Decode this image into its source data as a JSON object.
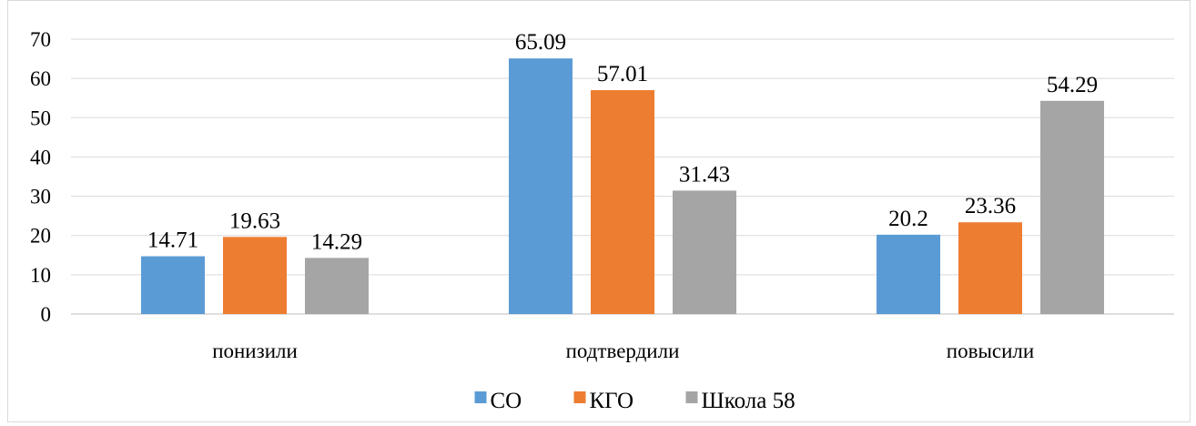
{
  "chart_data": {
    "type": "bar",
    "title": "",
    "xlabel": "",
    "ylabel": "",
    "categories": [
      "понизили",
      "подтвердили",
      "повысили"
    ],
    "series": [
      {
        "name": "СО",
        "color": "#5b9bd5",
        "values": [
          14.71,
          65.09,
          20.2
        ]
      },
      {
        "name": "КГО",
        "color": "#ed7d31",
        "values": [
          19.63,
          57.01,
          23.36
        ]
      },
      {
        "name": "Школа 58",
        "color": "#a5a5a5",
        "values": [
          14.29,
          31.43,
          54.29
        ]
      }
    ],
    "ylim": [
      0,
      70
    ],
    "yticks": [
      0,
      10,
      20,
      30,
      40,
      50,
      60,
      70
    ],
    "grid": true,
    "legend": "bottom",
    "data_labels": true
  }
}
